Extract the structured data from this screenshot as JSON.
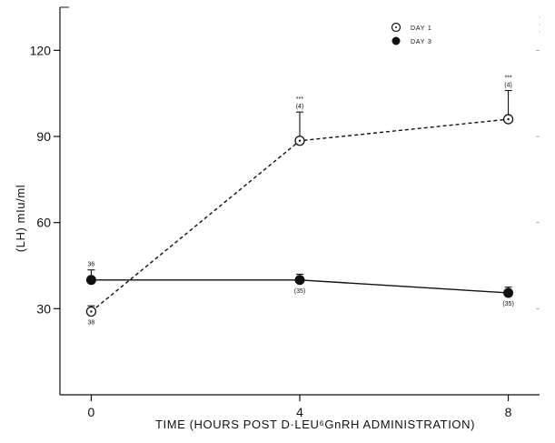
{
  "chart_data": {
    "type": "line",
    "xlabel": "TIME (HOURS POST D·LEU⁶GnRH ADMINISTRATION)",
    "ylabel": "(LH) mIu/ml",
    "x": [
      0,
      4,
      8
    ],
    "xticks": [
      "0",
      "4",
      "8"
    ],
    "yticks": [
      "30",
      "60",
      "90",
      "120"
    ],
    "xlim": [
      -0.6,
      8.6
    ],
    "ylim": [
      0,
      135
    ],
    "grid": false,
    "legend_position": "top-right",
    "series": [
      {
        "name": "DAY 1",
        "marker": "open-circle",
        "line": "dashed",
        "values": [
          29,
          88.5,
          96
        ],
        "errors": [
          2,
          10,
          10
        ],
        "point_labels": [
          "38",
          "(4)",
          "(4)"
        ],
        "significance": [
          "",
          "***",
          "***"
        ]
      },
      {
        "name": "DAY 3",
        "marker": "filled-circle",
        "line": "solid",
        "values": [
          40,
          40,
          35.5
        ],
        "errors": [
          3.5,
          2,
          2
        ],
        "point_labels": [
          "36",
          "(35)",
          "(35)"
        ],
        "significance": [
          "",
          "",
          ""
        ]
      }
    ]
  }
}
